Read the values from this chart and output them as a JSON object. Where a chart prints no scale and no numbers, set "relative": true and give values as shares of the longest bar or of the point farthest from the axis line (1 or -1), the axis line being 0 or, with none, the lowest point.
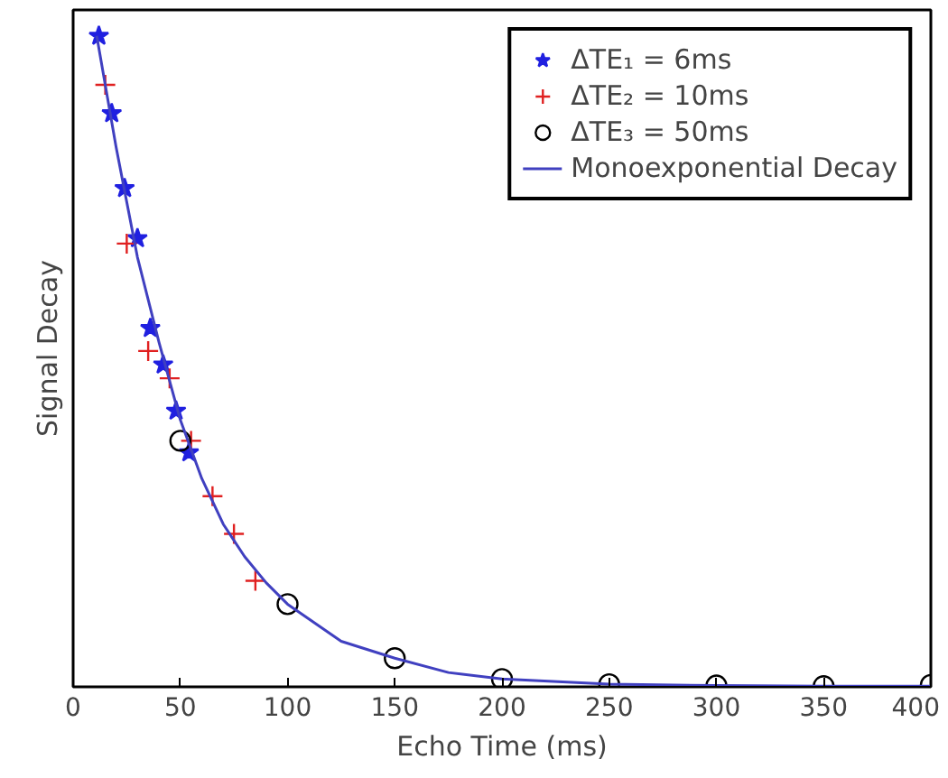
{
  "chart_data": {
    "type": "scatter",
    "xlabel": "Echo Time (ms)",
    "ylabel": "Signal Decay",
    "relative": true,
    "xlim": [
      0,
      400
    ],
    "xticks": [
      0,
      50,
      100,
      150,
      200,
      250,
      300,
      350,
      400
    ],
    "grid": false,
    "legend": "top right",
    "series": [
      {
        "name": "ΔTE₁ = 6ms",
        "marker": "star",
        "color": "#2020e0",
        "x": [
          12,
          18,
          24,
          30,
          36,
          42,
          48,
          54
        ],
        "values": [
          1.0,
          0.881,
          0.766,
          0.689,
          0.551,
          0.495,
          0.424,
          0.36
        ]
      },
      {
        "name": "ΔTE₂ = 10ms",
        "marker": "cross",
        "color": "#e02020",
        "x": [
          15,
          25,
          35,
          45,
          55,
          65,
          75,
          85
        ],
        "values": [
          0.925,
          0.681,
          0.516,
          0.474,
          0.378,
          0.293,
          0.235,
          0.163
        ]
      },
      {
        "name": "ΔTE₃ = 50ms",
        "marker": "circle",
        "color": "#000000",
        "x": [
          50,
          100,
          150,
          200,
          250,
          300,
          350,
          400
        ],
        "values": [
          0.378,
          0.127,
          0.044,
          0.012,
          0.004,
          0.002,
          0.001,
          0.003
        ]
      },
      {
        "name": "Monoexponential Decay",
        "type": "line",
        "marker": "none",
        "line_style": "solid",
        "color": "#4040c0",
        "x": [
          11,
          20,
          30,
          40,
          50,
          60,
          70,
          80,
          90,
          100,
          125,
          150,
          175,
          200,
          250,
          300,
          350,
          400
        ],
        "values": [
          1.0,
          0.83,
          0.66,
          0.53,
          0.41,
          0.32,
          0.25,
          0.2,
          0.16,
          0.127,
          0.07,
          0.044,
          0.022,
          0.012,
          0.004,
          0.002,
          0.001,
          0.001
        ]
      }
    ]
  }
}
